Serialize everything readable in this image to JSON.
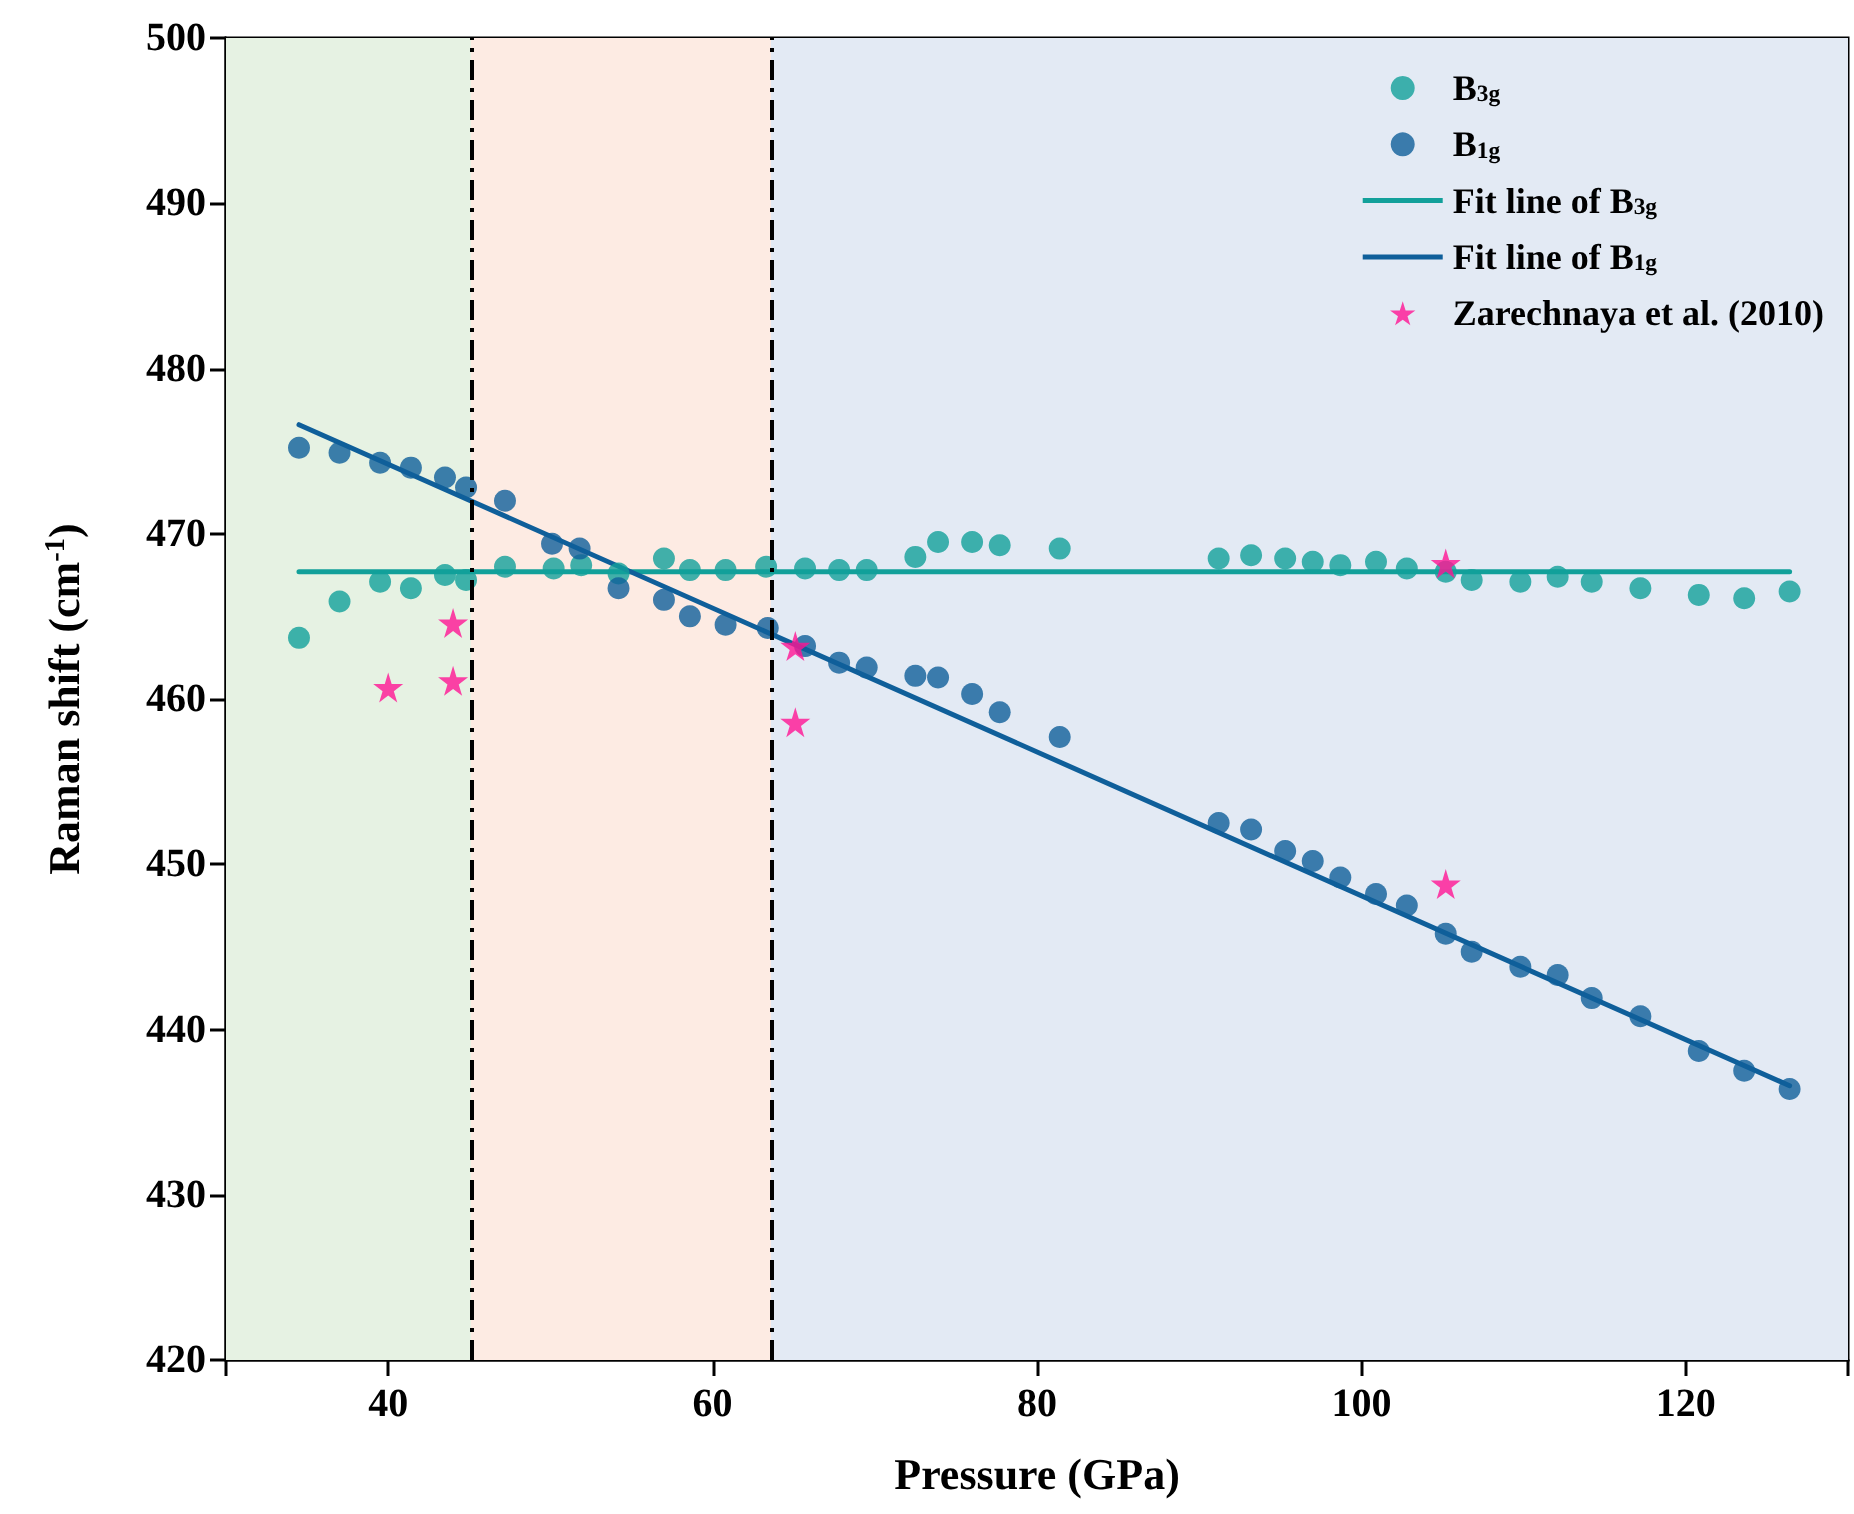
{
  "chart_data": {
    "type": "scatter",
    "xlabel": "Pressure (GPa)",
    "ylabel": "Raman shift (cm$^{-1}$)",
    "xlim": [
      30,
      130
    ],
    "xticks": [
      {
        "value": 30,
        "label": null
      },
      40,
      60,
      80,
      100,
      120,
      {
        "value": 130,
        "label": null
      }
    ],
    "ylim": [
      420,
      500
    ],
    "yticks": [
      420,
      430,
      440,
      450,
      460,
      470,
      480,
      490,
      500
    ],
    "grid": false,
    "legend": "top right",
    "series": [
      {
        "name": "B$_{3g}$",
        "type": "scatter",
        "marker": "circle",
        "color": "#12a09a",
        "x": [
          34.5,
          37.0,
          39.5,
          41.4,
          43.5,
          44.8,
          47.2,
          50.2,
          51.9,
          54.2,
          57.0,
          58.6,
          60.8,
          63.3,
          65.7,
          67.8,
          69.5,
          72.5,
          73.9,
          76.0,
          77.7,
          81.4,
          91.2,
          93.2,
          95.3,
          97.0,
          98.7,
          100.9,
          102.8,
          105.2,
          106.8,
          109.8,
          112.1,
          114.2,
          117.2,
          120.8,
          123.6,
          126.4
        ],
        "values": [
          463.7,
          465.9,
          467.1,
          466.7,
          467.5,
          467.2,
          468.0,
          467.9,
          468.1,
          467.6,
          468.5,
          467.8,
          467.8,
          468.0,
          467.9,
          467.8,
          467.8,
          468.6,
          469.5,
          469.5,
          469.3,
          469.1,
          468.5,
          468.7,
          468.5,
          468.3,
          468.1,
          468.3,
          467.9,
          467.7,
          467.2,
          467.1,
          467.4,
          467.1,
          466.7,
          466.3,
          466.1,
          466.5
        ]
      },
      {
        "name": "B$_{1g}$",
        "type": "scatter",
        "marker": "circle",
        "color": "#0f5f9a",
        "x": [
          34.5,
          37.0,
          39.5,
          41.4,
          43.5,
          44.8,
          47.2,
          50.1,
          51.8,
          54.2,
          57.0,
          58.6,
          60.8,
          63.4,
          65.7,
          67.8,
          69.5,
          72.5,
          73.9,
          76.0,
          77.7,
          81.4,
          91.2,
          93.2,
          95.3,
          97.0,
          98.7,
          100.9,
          102.8,
          105.2,
          106.8,
          109.8,
          112.1,
          114.2,
          117.2,
          120.8,
          123.6,
          126.4
        ],
        "values": [
          475.2,
          474.9,
          474.3,
          474.0,
          473.4,
          472.8,
          472.0,
          469.4,
          469.1,
          466.7,
          466.0,
          465.0,
          464.5,
          464.3,
          463.2,
          462.2,
          461.9,
          461.4,
          461.3,
          460.3,
          459.2,
          457.7,
          452.5,
          452.1,
          450.8,
          450.2,
          449.2,
          448.2,
          447.5,
          445.8,
          444.7,
          443.8,
          443.3,
          441.9,
          440.8,
          438.7,
          437.5,
          436.4
        ]
      },
      {
        "name": "Fit line of B$_{3g}$",
        "type": "line",
        "marker": "none",
        "color": "#12a09a",
        "x": [
          34.5,
          126.4
        ],
        "values": [
          467.7,
          467.7
        ]
      },
      {
        "name": "Fit line of B$_{1g}$",
        "type": "line",
        "marker": "none",
        "color": "#0f5f9a",
        "x": [
          34.5,
          126.4
        ],
        "values": [
          476.6,
          436.6
        ]
      },
      {
        "name": "Zarechnaya et al. (2010)",
        "type": "scatter",
        "marker": "star",
        "color": "#ff1493",
        "x": [
          40.0,
          44.0,
          44.0,
          65.1,
          65.1,
          105.2,
          105.2
        ],
        "values": [
          460.7,
          464.6,
          461.1,
          463.2,
          458.6,
          468.2,
          448.8
        ]
      }
    ],
    "bands": [
      {
        "axis": "x",
        "from": 30,
        "to": 45.1,
        "color": "#e6f2e3"
      },
      {
        "axis": "x",
        "from": 45.1,
        "to": 63.6,
        "color": "#fdebe3"
      },
      {
        "axis": "x",
        "from": 63.6,
        "to": 130,
        "color": "#e3eaf4"
      }
    ],
    "ref_lines": [
      {
        "axis": "x",
        "value": 45.1,
        "color": "#000000",
        "line_style": "dashed"
      },
      {
        "axis": "x",
        "value": 63.6,
        "color": "#000000",
        "line_style": "dashed"
      }
    ]
  }
}
